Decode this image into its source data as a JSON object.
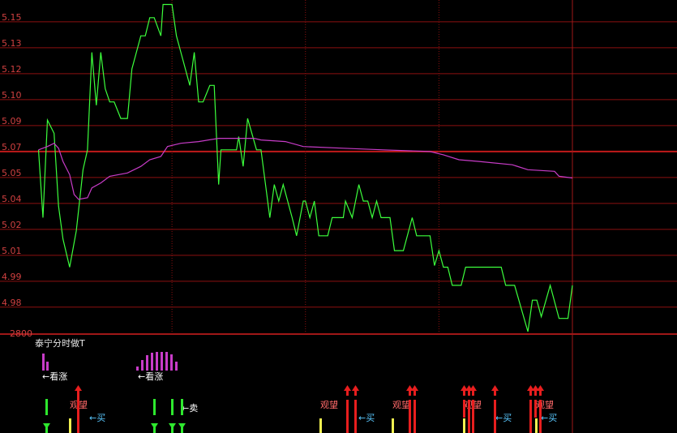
{
  "chart_data": {
    "type": "line",
    "xlim": [
      -2,
      240
    ],
    "xticks": [
      60,
      120,
      180,
      240
    ],
    "ylim": [
      4.96,
      5.1617
    ],
    "yticks": [
      {
        "value": 5.1485,
        "label": "5.15"
      },
      {
        "value": 5.1328,
        "label": "5.13"
      },
      {
        "value": 5.1171,
        "label": "5.12"
      },
      {
        "value": 5.1014,
        "label": "5.10"
      },
      {
        "value": 5.0857,
        "label": "5.09"
      },
      {
        "value": 5.07,
        "label": "5.07"
      },
      {
        "value": 5.0543,
        "label": "5.05"
      },
      {
        "value": 5.0386,
        "label": "5.04"
      },
      {
        "value": 5.0229,
        "label": "5.02"
      },
      {
        "value": 5.0072,
        "label": "5.01"
      },
      {
        "value": 4.9915,
        "label": "4.99"
      },
      {
        "value": 4.9758,
        "label": "4.98"
      }
    ],
    "reference_price": 5.07,
    "volume_label": "2800",
    "grid": true,
    "series": [
      {
        "color": "#3cff3c",
        "x": [
          0,
          2,
          4,
          7,
          9,
          11,
          14,
          17,
          20,
          22,
          24,
          26,
          28,
          30,
          32,
          34,
          37,
          40,
          42,
          46,
          48,
          50,
          52,
          55,
          56,
          60,
          62,
          64,
          68,
          70,
          72,
          74,
          77,
          79,
          81,
          82,
          89,
          90,
          92,
          94,
          98,
          100,
          104,
          106,
          108,
          110,
          114,
          116,
          119,
          120,
          122,
          124,
          126,
          130,
          132,
          137,
          138,
          141,
          144,
          146,
          148,
          150,
          152,
          154,
          158,
          160,
          164,
          168,
          170,
          176,
          178,
          180,
          182,
          184,
          186,
          190,
          192,
          208,
          210,
          214,
          220,
          222,
          224,
          226,
          230,
          234,
          238,
          240
        ],
        "values": [
          5.071,
          5.03,
          5.089,
          5.081,
          5.037,
          5.017,
          5.0,
          5.022,
          5.059,
          5.071,
          5.13,
          5.098,
          5.13,
          5.108,
          5.1,
          5.1,
          5.09,
          5.09,
          5.12,
          5.14,
          5.14,
          5.151,
          5.151,
          5.14,
          5.159,
          5.159,
          5.14,
          5.13,
          5.11,
          5.13,
          5.1,
          5.1,
          5.11,
          5.11,
          5.05,
          5.071,
          5.071,
          5.079,
          5.061,
          5.09,
          5.071,
          5.071,
          5.03,
          5.05,
          5.04,
          5.05,
          5.03,
          5.019,
          5.04,
          5.04,
          5.03,
          5.04,
          5.019,
          5.019,
          5.03,
          5.03,
          5.04,
          5.03,
          5.05,
          5.04,
          5.04,
          5.03,
          5.04,
          5.03,
          5.03,
          5.01,
          5.01,
          5.03,
          5.019,
          5.019,
          5.001,
          5.01,
          5.0,
          5.0,
          4.989,
          4.989,
          5.0,
          5.0,
          4.989,
          4.989,
          4.961,
          4.98,
          4.98,
          4.97,
          4.989,
          4.969,
          4.969,
          4.989
        ]
      },
      {
        "color": "#c83cc8",
        "x": [
          0,
          4,
          7,
          9,
          11,
          14,
          16,
          18,
          22,
          24,
          28,
          32,
          40,
          46,
          50,
          55,
          58,
          64,
          72,
          81,
          97,
          100,
          111,
          119,
          137,
          155,
          176,
          182,
          189,
          198,
          213,
          220,
          232,
          234,
          240
        ],
        "values": [
          5.071,
          5.073,
          5.075,
          5.072,
          5.064,
          5.056,
          5.044,
          5.041,
          5.042,
          5.048,
          5.051,
          5.055,
          5.057,
          5.061,
          5.065,
          5.067,
          5.073,
          5.075,
          5.076,
          5.078,
          5.078,
          5.077,
          5.076,
          5.073,
          5.072,
          5.071,
          5.07,
          5.068,
          5.065,
          5.064,
          5.062,
          5.059,
          5.058,
          5.055,
          5.054
        ]
      }
    ],
    "panel": {
      "title": "泰宁分时做T",
      "signals": [
        "←看涨",
        "←看涨",
        "观望",
        "观望",
        "观望",
        "观望",
        "观望",
        "←卖",
        "←买",
        "←买",
        "←买",
        "←买"
      ]
    }
  }
}
